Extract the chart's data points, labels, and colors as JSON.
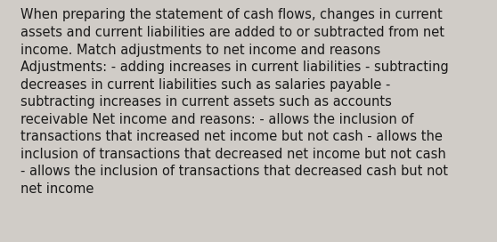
{
  "background_color": "#d0ccc7",
  "text_color": "#1a1a1a",
  "font_size": 10.5,
  "font_family": "DejaVu Sans",
  "lines": [
    "When preparing the statement of cash flows, changes in current",
    "assets and current liabilities are added to or subtracted from net",
    "income. Match adjustments to net income and reasons",
    "Adjustments: - adding increases in current liabilities - subtracting",
    "decreases in current liabilities such as salaries payable -",
    "subtracting increases in current assets such as accounts",
    "receivable Net income and reasons: - allows the inclusion of",
    "transactions that increased net income but not cash - allows the",
    "inclusion of transactions that decreased net income but not cash",
    "- allows the inclusion of transactions that decreased cash but not",
    "net income"
  ],
  "figsize": [
    5.58,
    2.72
  ],
  "dpi": 100
}
